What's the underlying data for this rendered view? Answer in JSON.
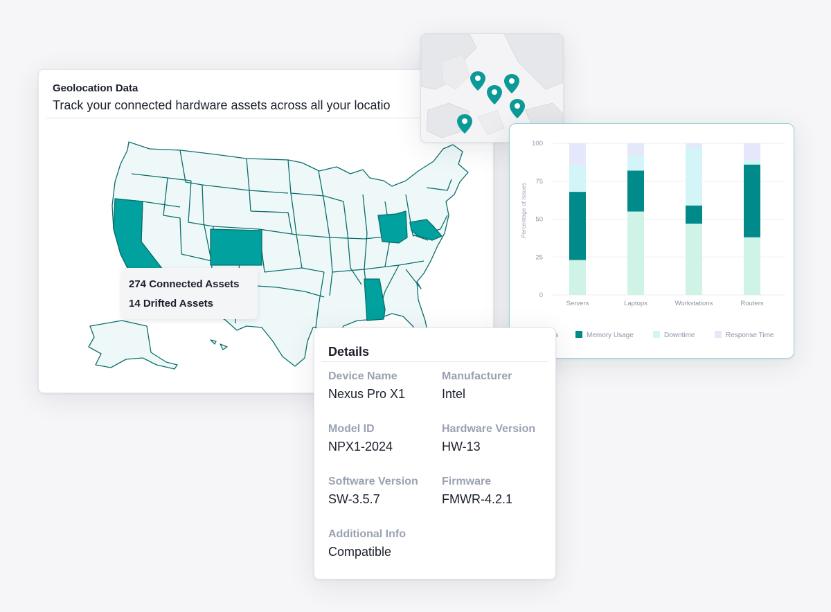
{
  "geolocation": {
    "title": "Geolocation Data",
    "subtitle": "Track your connected hardware assets across all your locatio",
    "tooltip": {
      "connected": "274 Connected Assets",
      "drifted": "14 Drifted Assets"
    },
    "highlighted_states": [
      "California",
      "Colorado",
      "Ohio",
      "Maryland",
      "Alabama"
    ],
    "colors": {
      "highlight": "#00a19e",
      "base": "#eff8f9",
      "stroke": "#0a6e6b"
    }
  },
  "mini_map": {
    "pin_count": 5,
    "pin_color": "#0b9a97"
  },
  "chart_data": {
    "type": "bar",
    "stacked": true,
    "categories": [
      "Servers",
      "Laptops",
      "Workstations",
      "Routers"
    ],
    "yticks": [
      "100",
      "75",
      "50",
      "25",
      "0"
    ],
    "ylabel": "Percentage of Issues",
    "ylim": [
      0,
      100
    ],
    "legend_position": "bottom",
    "series": [
      {
        "name": "Servers",
        "color": "#cff3e6",
        "values": [
          23,
          55,
          47,
          38
        ]
      },
      {
        "name": "Memory Usage",
        "color": "#008a8a",
        "values": [
          45,
          27,
          12,
          48
        ]
      },
      {
        "name": "Downtime",
        "color": "#d4f5f8",
        "values": [
          17,
          10,
          38,
          3
        ]
      },
      {
        "name": "Response Time",
        "color": "#e5e8fb",
        "values": [
          15,
          8,
          3,
          11
        ]
      }
    ]
  },
  "details": {
    "title": "Details",
    "fields": [
      {
        "label": "Device Name",
        "value": "Nexus Pro X1"
      },
      {
        "label": "Manufacturer",
        "value": "Intel"
      },
      {
        "label": "Model ID",
        "value": "NPX1-2024"
      },
      {
        "label": "Hardware Version",
        "value": "HW-13"
      },
      {
        "label": "Software Version",
        "value": "SW-3.5.7"
      },
      {
        "label": "Firmware",
        "value": "FMWR-4.2.1"
      },
      {
        "label": "Additional Info",
        "value": "Compatible"
      }
    ]
  }
}
